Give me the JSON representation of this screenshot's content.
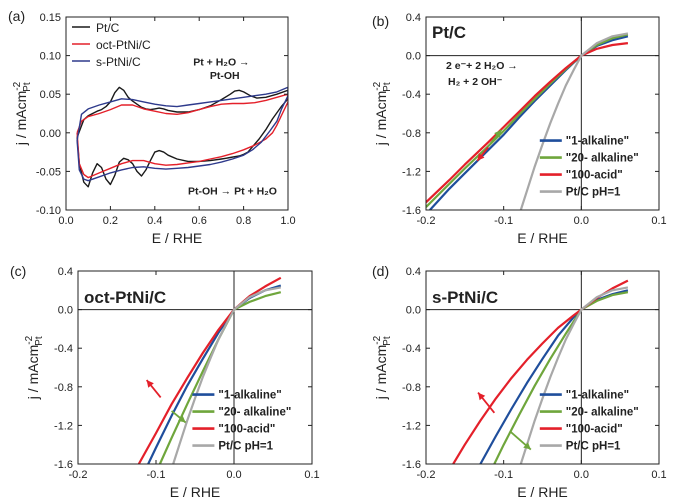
{
  "chart_data": [
    {
      "panel": "(a)",
      "type": "line",
      "xlabel": "E / RHE",
      "ylabel_main": "j / mAcm",
      "ylabel_sup": "-2",
      "ylabel_sub": "Pt",
      "xlim": [
        0.0,
        1.0
      ],
      "ylim": [
        -0.1,
        0.15
      ],
      "xticks": [
        "0.0",
        "0.2",
        "0.4",
        "0.6",
        "0.8",
        "1.0"
      ],
      "yticks": [
        "-0.10",
        "-0.05",
        "0.00",
        "0.05",
        "0.10",
        "0.15"
      ],
      "annotations": {
        "a1_line1": "Pt + H₂O →",
        "a1_line2": "Pt-OH",
        "a2": "Pt-OH → Pt + H₂O"
      },
      "series": [
        {
          "name": "Pt/C",
          "color": "#1a1a1a",
          "x": [
            0.05,
            0.08,
            0.1,
            0.12,
            0.14,
            0.16,
            0.18,
            0.2,
            0.22,
            0.24,
            0.26,
            0.28,
            0.3,
            0.32,
            0.34,
            0.36,
            0.38,
            0.4,
            0.42,
            0.44,
            0.46,
            0.5,
            0.55,
            0.6,
            0.65,
            0.7,
            0.74,
            0.76,
            0.78,
            0.8,
            0.83,
            0.86,
            0.9,
            0.95,
            1.0,
            1.0,
            0.97,
            0.93,
            0.9,
            0.87,
            0.84,
            0.82,
            0.8,
            0.78,
            0.76,
            0.74,
            0.72,
            0.7,
            0.65,
            0.6,
            0.55,
            0.5,
            0.46,
            0.44,
            0.42,
            0.4,
            0.38,
            0.36,
            0.34,
            0.32,
            0.3,
            0.28,
            0.26,
            0.24,
            0.22,
            0.2,
            0.18,
            0.16,
            0.14,
            0.12,
            0.1,
            0.08,
            0.06,
            0.05
          ],
          "y": [
            -0.006,
            0.017,
            0.022,
            0.025,
            0.028,
            0.03,
            0.034,
            0.04,
            0.052,
            0.059,
            0.055,
            0.046,
            0.041,
            0.037,
            0.033,
            0.031,
            0.03,
            0.031,
            0.032,
            0.031,
            0.029,
            0.027,
            0.027,
            0.03,
            0.035,
            0.043,
            0.05,
            0.054,
            0.055,
            0.053,
            0.048,
            0.045,
            0.046,
            0.05,
            0.055,
            0.044,
            0.034,
            0.018,
            0.004,
            -0.008,
            -0.018,
            -0.025,
            -0.028,
            -0.03,
            -0.031,
            -0.032,
            -0.033,
            -0.034,
            -0.036,
            -0.037,
            -0.037,
            -0.034,
            -0.029,
            -0.025,
            -0.023,
            -0.025,
            -0.036,
            -0.048,
            -0.056,
            -0.05,
            -0.04,
            -0.035,
            -0.033,
            -0.038,
            -0.055,
            -0.067,
            -0.06,
            -0.045,
            -0.04,
            -0.052,
            -0.07,
            -0.064,
            -0.04,
            -0.006
          ]
        },
        {
          "name": "oct-PtNi/C",
          "color": "#e4202a",
          "x": [
            0.05,
            0.07,
            0.1,
            0.15,
            0.2,
            0.25,
            0.3,
            0.35,
            0.4,
            0.45,
            0.5,
            0.55,
            0.6,
            0.65,
            0.7,
            0.75,
            0.8,
            0.85,
            0.9,
            0.95,
            1.0,
            1.0,
            0.97,
            0.95,
            0.93,
            0.9,
            0.85,
            0.8,
            0.75,
            0.7,
            0.65,
            0.6,
            0.55,
            0.5,
            0.45,
            0.4,
            0.35,
            0.3,
            0.25,
            0.2,
            0.15,
            0.1,
            0.08,
            0.06,
            0.05
          ],
          "y": [
            0.0,
            0.015,
            0.021,
            0.025,
            0.03,
            0.036,
            0.036,
            0.031,
            0.028,
            0.025,
            0.024,
            0.026,
            0.03,
            0.034,
            0.037,
            0.038,
            0.038,
            0.039,
            0.042,
            0.046,
            0.05,
            0.04,
            0.022,
            0.01,
            0.0,
            -0.008,
            -0.016,
            -0.022,
            -0.027,
            -0.031,
            -0.034,
            -0.037,
            -0.039,
            -0.041,
            -0.042,
            -0.04,
            -0.036,
            -0.036,
            -0.04,
            -0.046,
            -0.052,
            -0.058,
            -0.054,
            -0.04,
            0.0
          ]
        },
        {
          "name": "s-PtNi/C",
          "color": "#2e3a8c",
          "x": [
            0.05,
            0.07,
            0.1,
            0.15,
            0.2,
            0.25,
            0.3,
            0.35,
            0.4,
            0.45,
            0.5,
            0.55,
            0.6,
            0.65,
            0.7,
            0.75,
            0.8,
            0.85,
            0.9,
            0.95,
            1.0,
            1.0,
            0.97,
            0.95,
            0.92,
            0.88,
            0.84,
            0.8,
            0.75,
            0.7,
            0.65,
            0.6,
            0.55,
            0.5,
            0.45,
            0.4,
            0.35,
            0.3,
            0.25,
            0.2,
            0.15,
            0.1,
            0.08,
            0.06,
            0.05
          ],
          "y": [
            -0.01,
            0.024,
            0.031,
            0.036,
            0.04,
            0.044,
            0.043,
            0.04,
            0.037,
            0.035,
            0.034,
            0.036,
            0.038,
            0.04,
            0.042,
            0.044,
            0.046,
            0.048,
            0.05,
            0.053,
            0.059,
            0.048,
            0.03,
            0.015,
            0.003,
            -0.012,
            -0.022,
            -0.029,
            -0.034,
            -0.038,
            -0.041,
            -0.043,
            -0.045,
            -0.046,
            -0.047,
            -0.046,
            -0.044,
            -0.045,
            -0.048,
            -0.052,
            -0.057,
            -0.062,
            -0.06,
            -0.048,
            -0.01
          ]
        }
      ]
    },
    {
      "panel": "(b)",
      "title": "Pt/C",
      "type": "line",
      "xlabel": "E / RHE",
      "ylabel_main": "j / mAcm",
      "ylabel_sup": "-2",
      "ylabel_sub": "Pt",
      "xlim": [
        -0.2,
        0.1
      ],
      "ylim": [
        -1.6,
        0.4
      ],
      "xticks": [
        "-0.2",
        "-0.1",
        "0.0",
        "0.1"
      ],
      "yticks": [
        "-1.6",
        "-1.2",
        "-0.8",
        "-0.4",
        "0.0",
        "0.4"
      ],
      "annotations": {
        "eq_line1": "2 e⁻+ 2 H₂O →",
        "eq_line2": "H₂ + 2 OH⁻"
      },
      "series": [
        {
          "name": "\"1-alkaline\"",
          "color": "#1f4e9c",
          "x": [
            -0.195,
            -0.17,
            -0.15,
            -0.12,
            -0.1,
            -0.08,
            -0.06,
            -0.04,
            -0.02,
            0.0,
            0.02,
            0.04,
            0.06
          ],
          "y": [
            -1.6,
            -1.38,
            -1.22,
            -0.98,
            -0.82,
            -0.64,
            -0.47,
            -0.31,
            -0.15,
            0.0,
            0.1,
            0.16,
            0.2
          ]
        },
        {
          "name": "\"20- alkaline\"",
          "color": "#6fa63c",
          "x": [
            -0.2,
            -0.17,
            -0.15,
            -0.12,
            -0.1,
            -0.08,
            -0.06,
            -0.04,
            -0.02,
            0.0,
            0.02,
            0.04,
            0.06
          ],
          "y": [
            -1.57,
            -1.33,
            -1.17,
            -0.94,
            -0.78,
            -0.61,
            -0.45,
            -0.29,
            -0.14,
            0.0,
            0.11,
            0.18,
            0.22
          ]
        },
        {
          "name": "\"100-acid\"",
          "color": "#e4202a",
          "x": [
            -0.2,
            -0.17,
            -0.15,
            -0.12,
            -0.1,
            -0.08,
            -0.06,
            -0.04,
            -0.02,
            0.0,
            0.02,
            0.04,
            0.06
          ],
          "y": [
            -1.52,
            -1.29,
            -1.13,
            -0.9,
            -0.74,
            -0.58,
            -0.42,
            -0.27,
            -0.13,
            0.0,
            0.07,
            0.11,
            0.13
          ]
        },
        {
          "name": "Pt/C pH=1",
          "color": "#a8a8a8",
          "x": [
            -0.078,
            -0.07,
            -0.06,
            -0.05,
            -0.04,
            -0.03,
            -0.02,
            -0.01,
            0.0,
            0.02,
            0.04,
            0.06
          ],
          "y": [
            -1.6,
            -1.4,
            -1.15,
            -0.92,
            -0.7,
            -0.5,
            -0.31,
            -0.15,
            0.0,
            0.13,
            0.2,
            0.23
          ]
        }
      ],
      "arrows": [
        {
          "color": "#6fa63c",
          "from": [
            -0.117,
            -0.91
          ],
          "to": [
            -0.103,
            -0.77
          ]
        },
        {
          "color": "#e4202a",
          "from": [
            -0.12,
            -0.95
          ],
          "to": [
            -0.134,
            -1.09
          ]
        }
      ]
    },
    {
      "panel": "(c)",
      "title": "oct-PtNi/C",
      "type": "line",
      "xlabel": "E / RHE",
      "ylabel_main": "j / mAcm",
      "ylabel_sup": "-2",
      "ylabel_sub": "Pt",
      "xlim": [
        -0.2,
        0.1
      ],
      "ylim": [
        -1.6,
        0.4
      ],
      "xticks": [
        "-0.2",
        "-0.1",
        "0.0",
        "0.1"
      ],
      "yticks": [
        "-1.6",
        "-1.2",
        "-0.8",
        "-0.4",
        "0.0",
        "0.4"
      ],
      "series": [
        {
          "name": "\"1-alkaline\"",
          "color": "#1f4e9c",
          "x": [
            -0.11,
            -0.1,
            -0.08,
            -0.06,
            -0.04,
            -0.02,
            0.0,
            0.02,
            0.04,
            0.06
          ],
          "y": [
            -1.6,
            -1.43,
            -1.1,
            -0.79,
            -0.51,
            -0.24,
            0.0,
            0.12,
            0.2,
            0.25
          ]
        },
        {
          "name": "\"20- alkaline\"",
          "color": "#6fa63c",
          "x": [
            -0.095,
            -0.08,
            -0.06,
            -0.04,
            -0.02,
            0.0,
            0.02,
            0.04,
            0.06
          ],
          "y": [
            -1.6,
            -1.33,
            -0.98,
            -0.64,
            -0.31,
            0.0,
            0.08,
            0.14,
            0.18
          ]
        },
        {
          "name": "\"100-acid\"",
          "color": "#e4202a",
          "x": [
            -0.122,
            -0.1,
            -0.08,
            -0.06,
            -0.04,
            -0.02,
            0.0,
            0.02,
            0.04,
            0.06
          ],
          "y": [
            -1.6,
            -1.28,
            -0.98,
            -0.71,
            -0.45,
            -0.21,
            0.0,
            0.14,
            0.24,
            0.33
          ]
        },
        {
          "name": "Pt/C pH=1",
          "color": "#a8a8a8",
          "x": [
            -0.078,
            -0.07,
            -0.06,
            -0.05,
            -0.04,
            -0.03,
            -0.02,
            -0.01,
            0.0,
            0.02,
            0.04,
            0.06
          ],
          "y": [
            -1.6,
            -1.4,
            -1.15,
            -0.92,
            -0.7,
            -0.5,
            -0.31,
            -0.15,
            0.0,
            0.13,
            0.2,
            0.23
          ]
        }
      ],
      "arrows": [
        {
          "color": "#e4202a",
          "from": [
            -0.094,
            -0.91
          ],
          "to": [
            -0.112,
            -0.73
          ]
        },
        {
          "color": "#6fa63c",
          "from": [
            -0.08,
            -1.05
          ],
          "to": [
            -0.062,
            -1.17
          ]
        }
      ]
    },
    {
      "panel": "(d)",
      "title": "s-PtNi/C",
      "type": "line",
      "xlabel": "E / RHE",
      "ylabel_main": "j / mAcm",
      "ylabel_sup": "-2",
      "ylabel_sub": "Pt",
      "xlim": [
        -0.2,
        0.1
      ],
      "ylim": [
        -1.6,
        0.4
      ],
      "xticks": [
        "-0.2",
        "-0.1",
        "0.0",
        "0.1"
      ],
      "yticks": [
        "-1.6",
        "-1.2",
        "-0.8",
        "-0.4",
        "0.0",
        "0.4"
      ],
      "series": [
        {
          "name": "\"1-alkaline\"",
          "color": "#1f4e9c",
          "x": [
            -0.13,
            -0.11,
            -0.09,
            -0.07,
            -0.05,
            -0.03,
            -0.01,
            0.0,
            0.02,
            0.04,
            0.06
          ],
          "y": [
            -1.6,
            -1.31,
            -1.03,
            -0.76,
            -0.51,
            -0.27,
            -0.08,
            0.0,
            0.1,
            0.16,
            0.2
          ]
        },
        {
          "name": "\"20- alkaline\"",
          "color": "#6fa63c",
          "x": [
            -0.112,
            -0.1,
            -0.08,
            -0.06,
            -0.04,
            -0.02,
            0.0,
            0.02,
            0.04,
            0.06
          ],
          "y": [
            -1.6,
            -1.4,
            -1.09,
            -0.79,
            -0.51,
            -0.25,
            0.0,
            0.09,
            0.15,
            0.18
          ]
        },
        {
          "name": "\"100-acid\"",
          "color": "#e4202a",
          "x": [
            -0.165,
            -0.15,
            -0.13,
            -0.11,
            -0.09,
            -0.07,
            -0.05,
            -0.03,
            -0.01,
            0.0,
            0.02,
            0.04,
            0.06
          ],
          "y": [
            -1.6,
            -1.4,
            -1.15,
            -0.92,
            -0.71,
            -0.52,
            -0.35,
            -0.19,
            -0.06,
            0.0,
            0.12,
            0.22,
            0.3
          ]
        },
        {
          "name": "Pt/C pH=1",
          "color": "#a8a8a8",
          "x": [
            -0.078,
            -0.07,
            -0.06,
            -0.05,
            -0.04,
            -0.03,
            -0.02,
            -0.01,
            0.0,
            0.02,
            0.04,
            0.06
          ],
          "y": [
            -1.6,
            -1.4,
            -1.15,
            -0.92,
            -0.7,
            -0.5,
            -0.31,
            -0.15,
            0.0,
            0.13,
            0.2,
            0.23
          ]
        }
      ],
      "arrows": [
        {
          "color": "#e4202a",
          "from": [
            -0.112,
            -1.07
          ],
          "to": [
            -0.133,
            -0.86
          ]
        },
        {
          "color": "#6fa63c",
          "from": [
            -0.092,
            -1.26
          ],
          "to": [
            -0.065,
            -1.45
          ]
        }
      ]
    }
  ]
}
